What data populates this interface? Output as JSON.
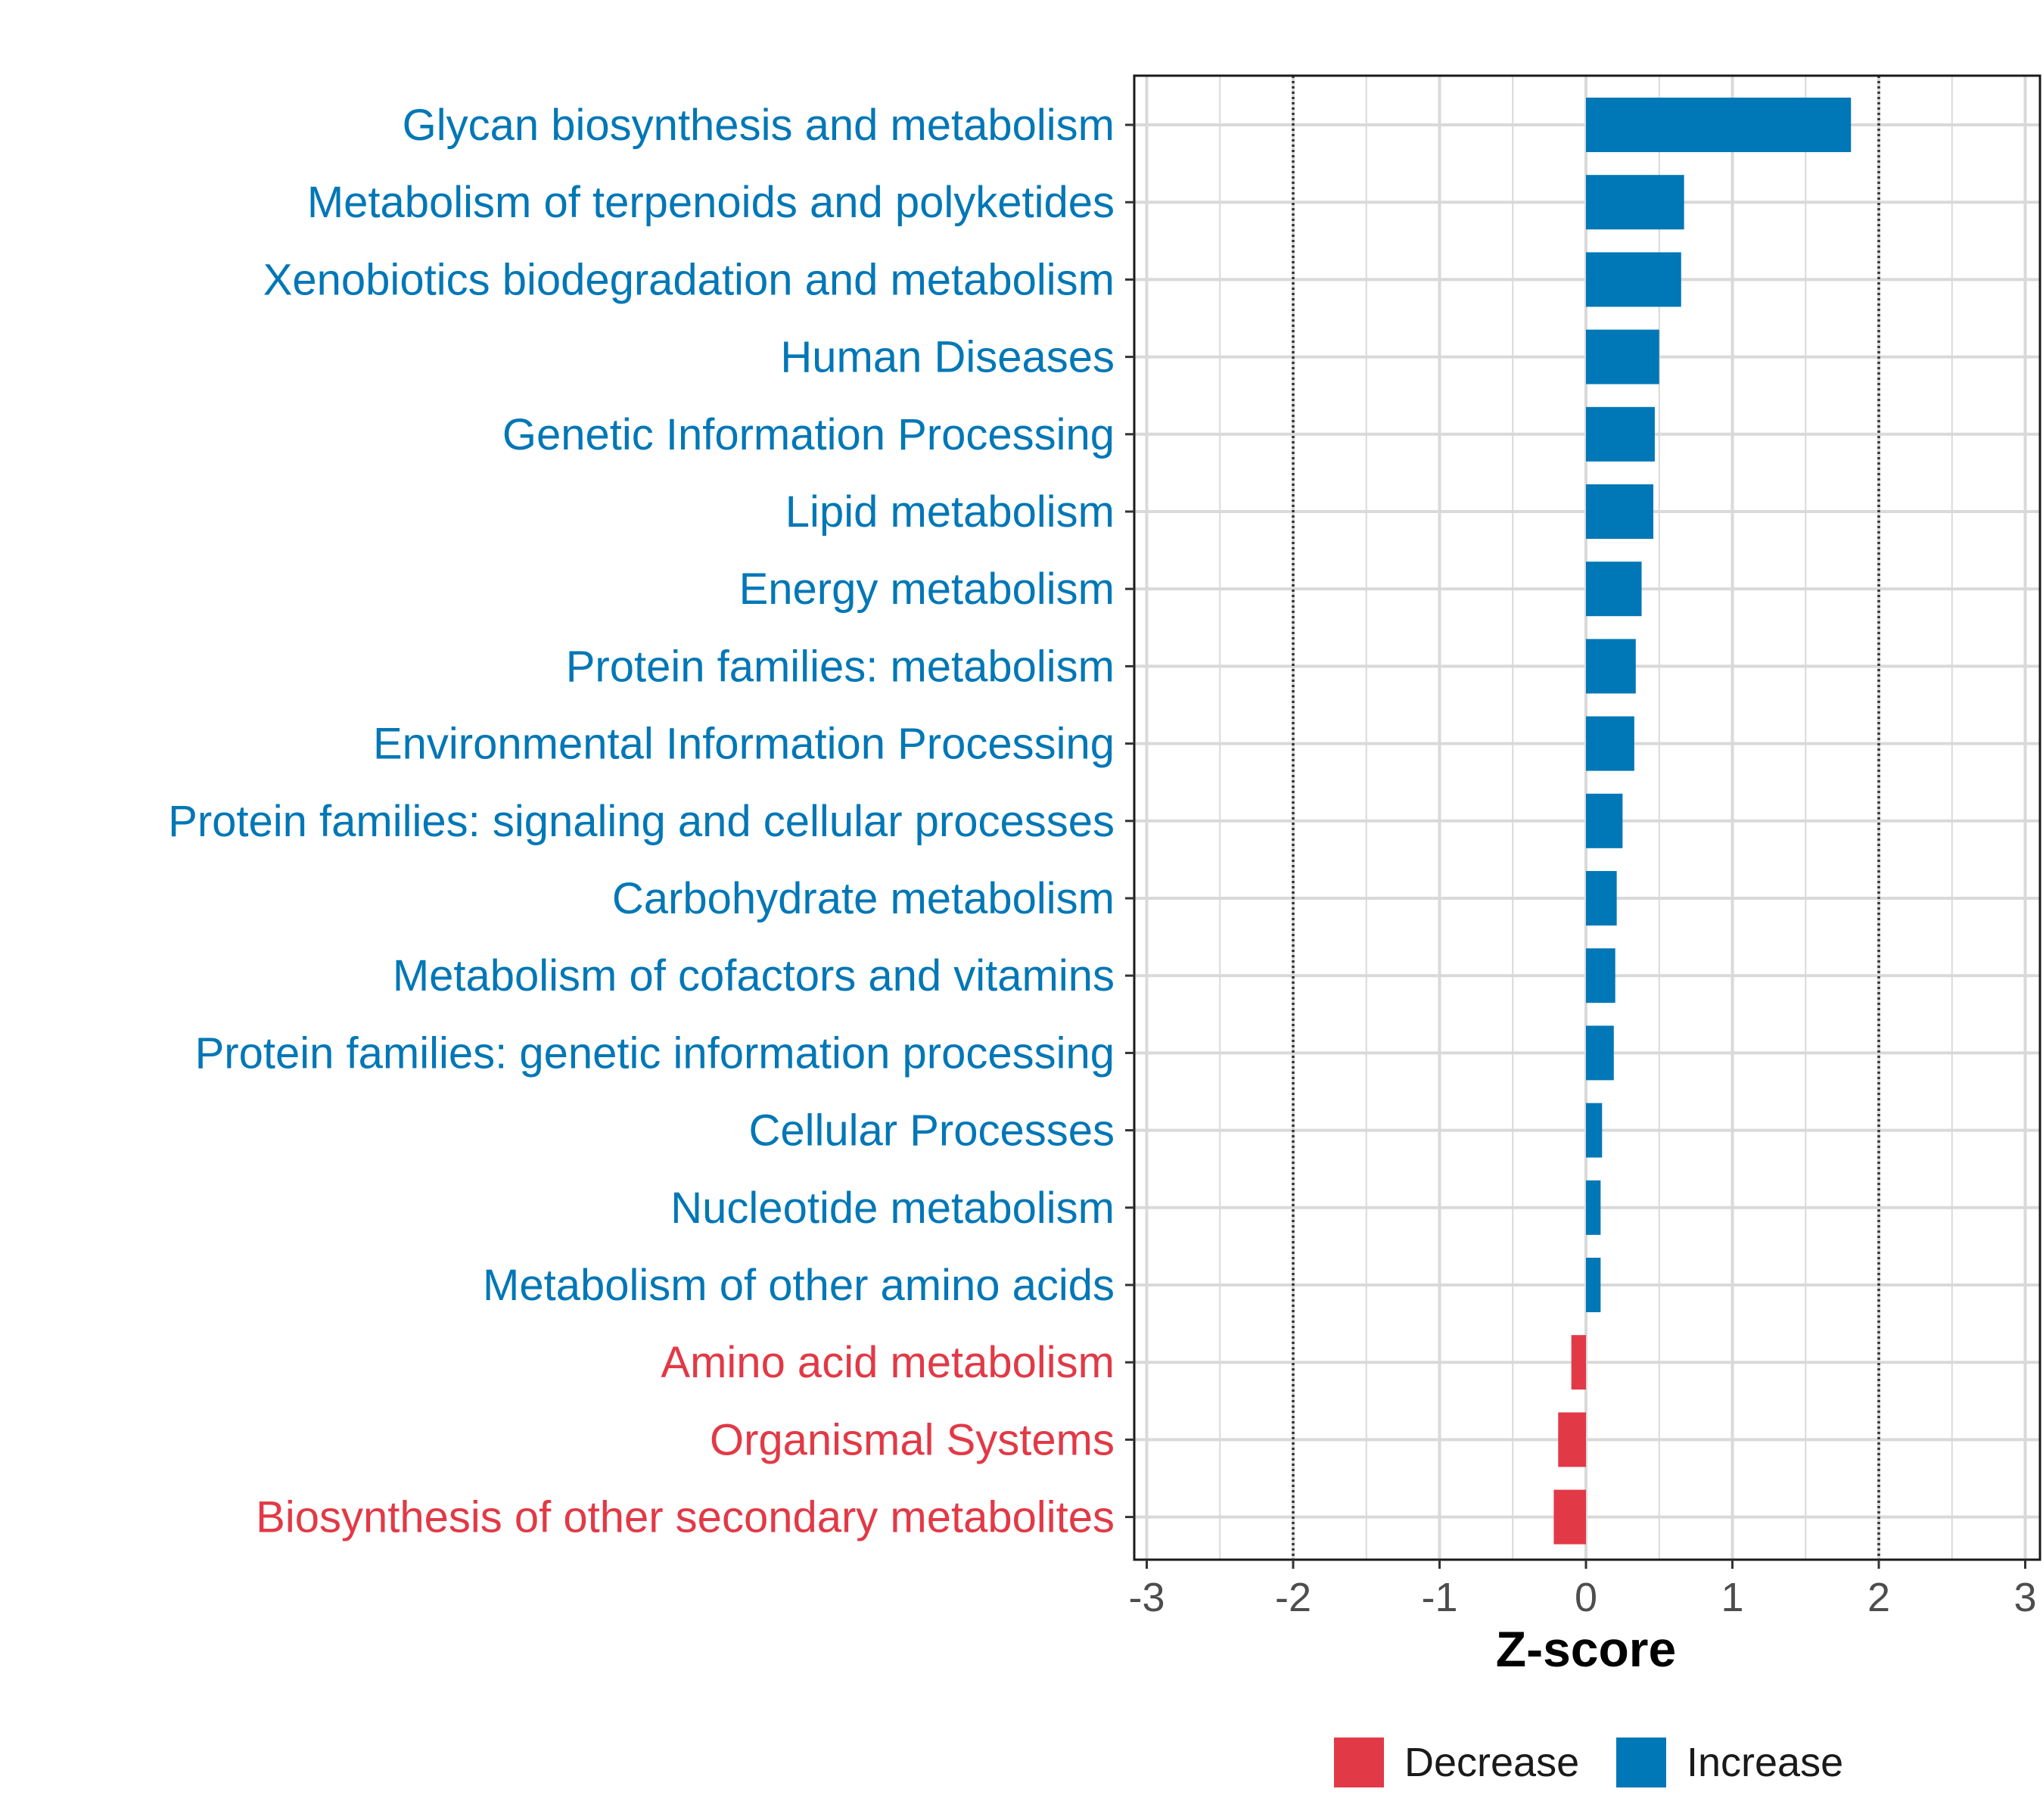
{
  "chart_data": {
    "type": "bar",
    "orientation": "horizontal",
    "title": "",
    "xlabel": "Z-score",
    "ylabel": "",
    "xlim": [
      -3,
      3
    ],
    "x_ticks": [
      -3,
      -2,
      -1,
      0,
      1,
      2,
      3
    ],
    "x_tick_labels": [
      "-3",
      "-2",
      "-1",
      "0",
      "1",
      "2",
      "3"
    ],
    "reference_lines": [
      -2,
      2
    ],
    "grid": true,
    "legend_placement": "bottom",
    "colors": {
      "Decrease": "#e23946",
      "Increase": "#0077b6"
    },
    "series": [
      {
        "name": "Decrease",
        "color": "#e23946"
      },
      {
        "name": "Increase",
        "color": "#0077b6"
      }
    ],
    "categories": [
      "Glycan biosynthesis and metabolism",
      "Metabolism of terpenoids and polyketides",
      "Xenobiotics biodegradation and metabolism",
      "Human Diseases",
      "Genetic Information Processing",
      "Lipid metabolism",
      "Energy metabolism",
      "Protein families: metabolism",
      "Environmental Information Processing",
      "Protein families: signaling and cellular processes",
      "Carbohydrate metabolism",
      "Metabolism of cofactors and vitamins",
      "Protein families: genetic information processing",
      "Cellular Processes",
      "Nucleotide metabolism",
      "Metabolism of other amino acids",
      "Amino acid metabolism",
      "Organismal Systems",
      "Biosynthesis of other secondary metabolites"
    ],
    "values": [
      1.81,
      0.67,
      0.65,
      0.5,
      0.47,
      0.46,
      0.38,
      0.34,
      0.33,
      0.25,
      0.21,
      0.2,
      0.19,
      0.11,
      0.1,
      0.1,
      -0.1,
      -0.19,
      -0.22
    ],
    "groups": [
      "Increase",
      "Increase",
      "Increase",
      "Increase",
      "Increase",
      "Increase",
      "Increase",
      "Increase",
      "Increase",
      "Increase",
      "Increase",
      "Increase",
      "Increase",
      "Increase",
      "Increase",
      "Increase",
      "Decrease",
      "Decrease",
      "Decrease"
    ]
  }
}
